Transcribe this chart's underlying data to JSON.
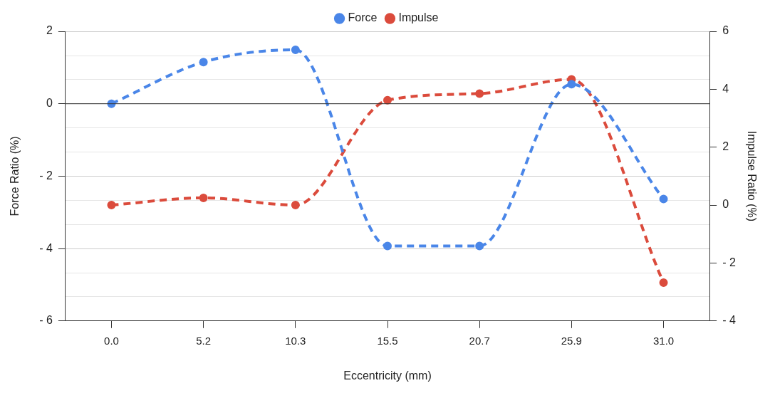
{
  "chart_data": {
    "type": "line",
    "xlabel": "Eccentricity (mm)",
    "ylabel": "Force Ratio (%)",
    "y2label": "Impulse Ratio (%)",
    "categories": [
      "0.0",
      "5.2",
      "10.3",
      "15.5",
      "20.7",
      "25.9",
      "31.0"
    ],
    "series": [
      {
        "name": "Force",
        "color": "#4a86e8",
        "values": [
          0,
          1.15,
          1.49,
          -3.93,
          -3.93,
          0.54,
          -2.63
        ]
      },
      {
        "name": "Impulse",
        "color": "#db4b3c",
        "axis": "y2",
        "values": [
          0,
          0.25,
          0,
          3.62,
          3.85,
          4.34,
          -2.68
        ]
      }
    ],
    "ylim": [
      -6,
      2
    ],
    "yticks": [
      {
        "value": -6,
        "label": "- 6"
      },
      {
        "value": -5.33,
        "label": null
      },
      {
        "value": -4.67,
        "label": null
      },
      {
        "value": -4,
        "label": "- 4"
      },
      {
        "value": -3.33,
        "label": null
      },
      {
        "value": -2.67,
        "label": null
      },
      {
        "value": -2,
        "label": "- 2"
      },
      {
        "value": -1.33,
        "label": null
      },
      {
        "value": -0.67,
        "label": null
      },
      0,
      {
        "value": 0.67,
        "label": null
      },
      {
        "value": 1.33,
        "label": null
      },
      2
    ],
    "y2lim": [
      -4,
      6
    ],
    "y2ticks": [
      {
        "value": -4,
        "label": "- 4"
      },
      {
        "value": -2,
        "label": "- 2"
      },
      0,
      2,
      4,
      6
    ],
    "ref_lines": [
      {
        "axis": "y",
        "value": 0,
        "color": "#333333"
      }
    ],
    "grid": "y",
    "legend": "top",
    "marker": "circle",
    "line_style": "dashed"
  }
}
